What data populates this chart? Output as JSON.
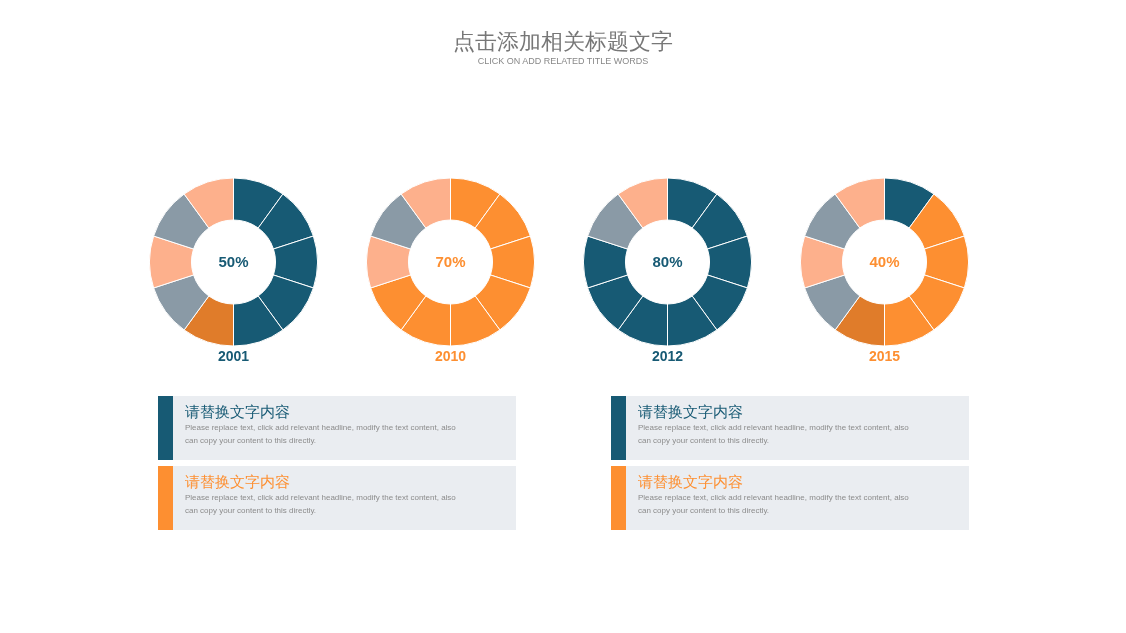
{
  "chart_data": [
    {
      "type": "other",
      "title": "点击添加相关标题文字",
      "subtitle": "CLICK ON ADD RELATED TITLE WORDS"
    },
    {
      "type": "donut",
      "title": "2001",
      "annotations": [
        "50%"
      ],
      "categories": [
        null,
        null,
        null,
        null,
        null,
        null,
        null,
        null,
        null,
        null
      ],
      "values": [
        10,
        10,
        10,
        10,
        10,
        10,
        10,
        10,
        10,
        10
      ],
      "colors": [
        "#175a74",
        "#175a74",
        "#175a74",
        "#175a74",
        "#175a74",
        "#e07c2a",
        "#8a9aa6",
        "#fdb08c",
        "#8a9aa6",
        "#fdb08c"
      ]
    },
    {
      "type": "donut",
      "title": "2010",
      "annotations": [
        "70%"
      ],
      "categories": [
        null,
        null,
        null,
        null,
        null,
        null,
        null,
        null,
        null,
        null
      ],
      "values": [
        10,
        10,
        10,
        10,
        10,
        10,
        10,
        10,
        10,
        10
      ],
      "colors": [
        "#fd8f31",
        "#fd8f31",
        "#fd8f31",
        "#fd8f31",
        "#fd8f31",
        "#fd8f31",
        "#fd8f31",
        "#fdb08c",
        "#8a9aa6",
        "#fdb08c"
      ]
    },
    {
      "type": "donut",
      "title": "2012",
      "annotations": [
        "80%"
      ],
      "categories": [
        null,
        null,
        null,
        null,
        null,
        null,
        null,
        null,
        null,
        null
      ],
      "values": [
        10,
        10,
        10,
        10,
        10,
        10,
        10,
        10,
        10,
        10
      ],
      "colors": [
        "#175a74",
        "#175a74",
        "#175a74",
        "#175a74",
        "#175a74",
        "#175a74",
        "#175a74",
        "#175a74",
        "#8a9aa6",
        "#fdb08c"
      ]
    },
    {
      "type": "donut",
      "title": "2015",
      "annotations": [
        "40%"
      ],
      "categories": [
        null,
        null,
        null,
        null,
        null,
        null,
        null,
        null,
        null,
        null
      ],
      "values": [
        10,
        10,
        10,
        10,
        10,
        10,
        10,
        10,
        10,
        10
      ],
      "colors": [
        "#175a74",
        "#fd8f31",
        "#fd8f31",
        "#fd8f31",
        "#fd8f31",
        "#e07c2a",
        "#8a9aa6",
        "#fdb08c",
        "#8a9aa6",
        "#fdb08c"
      ]
    },
    {
      "type": "other",
      "annotations": [
        "请替换文字内容",
        "Please replace text, click add relevant headline, modify the text content, also can copy your content to this directly.",
        "请替换文字内容",
        "Please replace text, click add relevant headline, modify the text content, also can copy your content to this directly.",
        "请替换文字内容",
        "Please replace text, click add relevant headline, modify the text content, also can copy your content to this directly.",
        "请替换文字内容",
        "Please replace text, click add relevant headline, modify the text content, also can copy your content to this directly."
      ]
    }
  ]
}
